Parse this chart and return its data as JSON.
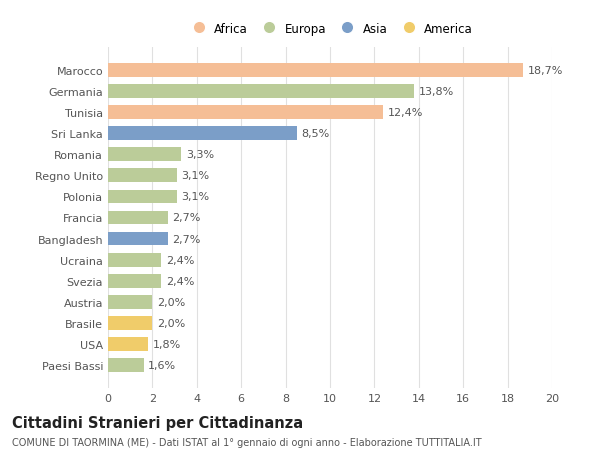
{
  "countries": [
    "Marocco",
    "Germania",
    "Tunisia",
    "Sri Lanka",
    "Romania",
    "Regno Unito",
    "Polonia",
    "Francia",
    "Bangladesh",
    "Ucraina",
    "Svezia",
    "Austria",
    "Brasile",
    "USA",
    "Paesi Bassi"
  ],
  "values": [
    18.7,
    13.8,
    12.4,
    8.5,
    3.3,
    3.1,
    3.1,
    2.7,
    2.7,
    2.4,
    2.4,
    2.0,
    2.0,
    1.8,
    1.6
  ],
  "labels": [
    "18,7%",
    "13,8%",
    "12,4%",
    "8,5%",
    "3,3%",
    "3,1%",
    "3,1%",
    "2,7%",
    "2,7%",
    "2,4%",
    "2,4%",
    "2,0%",
    "2,0%",
    "1,8%",
    "1,6%"
  ],
  "continents": [
    "Africa",
    "Europa",
    "Africa",
    "Asia",
    "Europa",
    "Europa",
    "Europa",
    "Europa",
    "Asia",
    "Europa",
    "Europa",
    "Europa",
    "America",
    "America",
    "Europa"
  ],
  "colors": {
    "Africa": "#F5BE96",
    "Europa": "#BBCC99",
    "Asia": "#7B9EC8",
    "America": "#F0CC6A"
  },
  "legend_order": [
    "Africa",
    "Europa",
    "Asia",
    "America"
  ],
  "xlim": [
    0,
    20
  ],
  "xticks": [
    0,
    2,
    4,
    6,
    8,
    10,
    12,
    14,
    16,
    18,
    20
  ],
  "title": "Cittadini Stranieri per Cittadinanza",
  "subtitle": "COMUNE DI TAORMINA (ME) - Dati ISTAT al 1° gennaio di ogni anno - Elaborazione TUTTITALIA.IT",
  "bg_color": "#ffffff",
  "grid_color": "#e0e0e0",
  "bar_height": 0.65,
  "label_fontsize": 8,
  "tick_fontsize": 8,
  "title_fontsize": 10.5,
  "subtitle_fontsize": 7
}
